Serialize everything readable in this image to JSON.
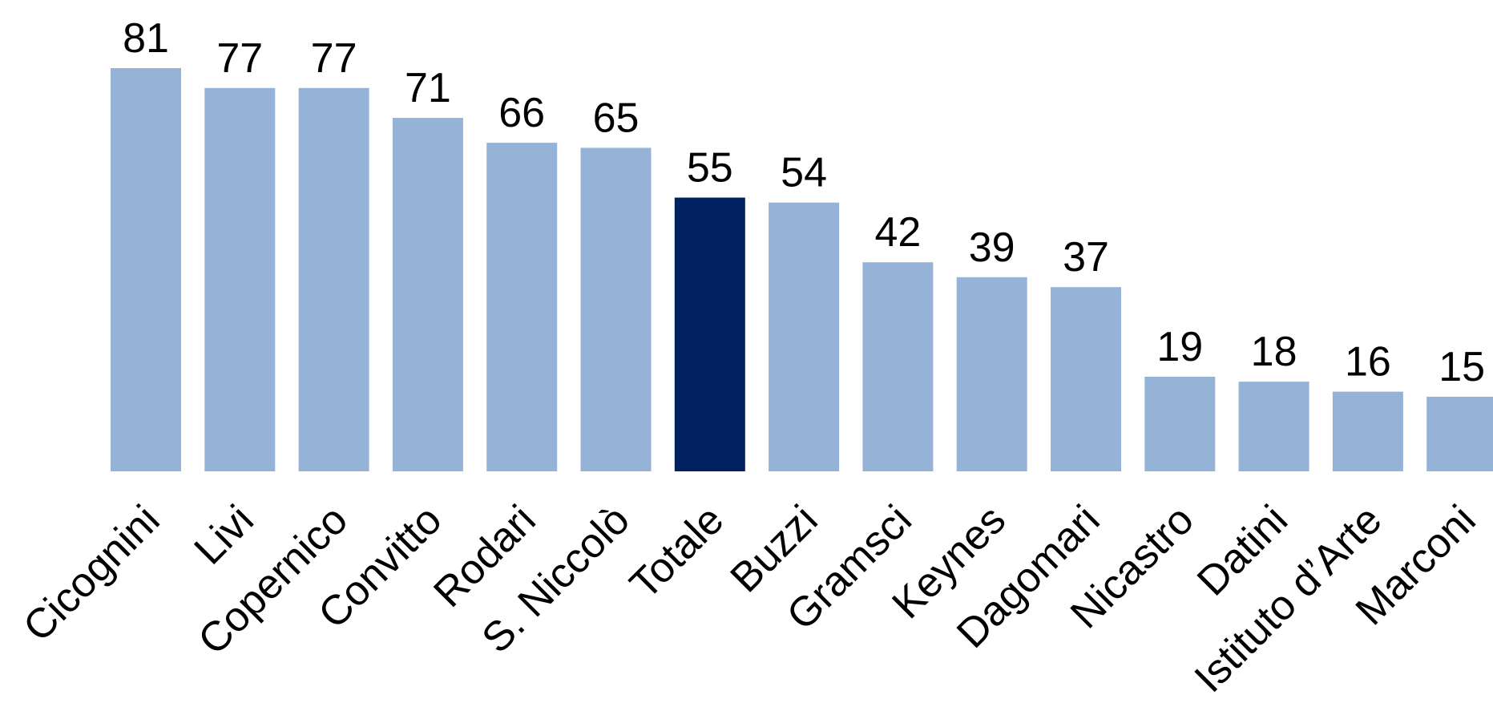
{
  "chart_data": {
    "type": "bar",
    "categories": [
      "Cicognini",
      "Livi",
      "Copernico",
      "Convitto",
      "Rodari",
      "S. Niccolò",
      "Totale",
      "Buzzi",
      "Gramsci",
      "Keynes",
      "Dagomari",
      "Nicastro",
      "Datini",
      "Istituto d’Arte",
      "Marconi"
    ],
    "values": [
      81,
      77,
      77,
      71,
      66,
      65,
      55,
      54,
      42,
      39,
      37,
      19,
      18,
      16,
      15
    ],
    "highlight_category": "Totale",
    "title": "",
    "xlabel": "",
    "ylabel": "",
    "ylim": [
      0,
      81
    ],
    "grid": false,
    "legend": "none",
    "data_labels": true,
    "colors": {
      "bar": "#95B3D7",
      "highlight": "#002060",
      "text": "#000000"
    }
  }
}
